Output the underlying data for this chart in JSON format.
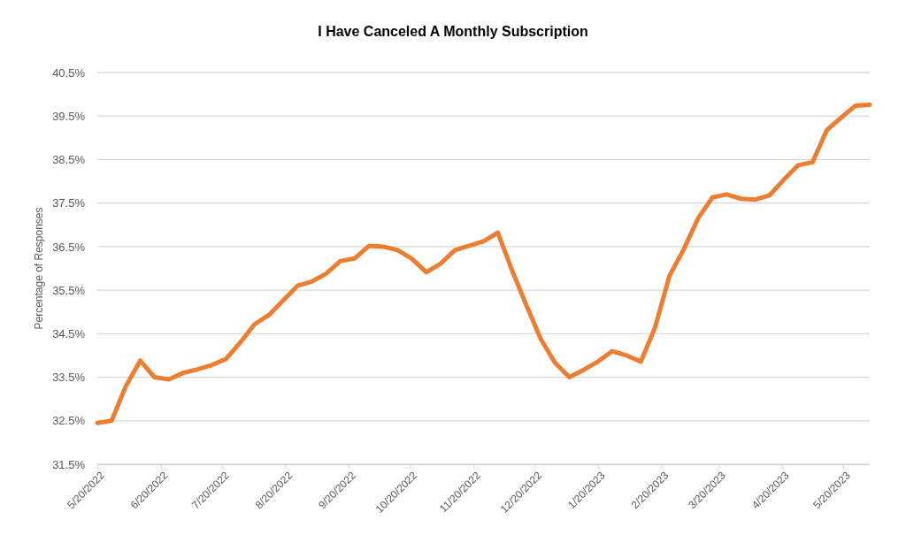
{
  "chart_data": {
    "type": "line",
    "title": "I Have Canceled A Monthly Subscription",
    "ylabel": "Percentage of Responses",
    "x": [
      "2022-05-20",
      "2022-05-27",
      "2022-06-03",
      "2022-06-10",
      "2022-06-17",
      "2022-06-24",
      "2022-07-01",
      "2022-07-08",
      "2022-07-15",
      "2022-07-22",
      "2022-07-29",
      "2022-08-05",
      "2022-08-12",
      "2022-08-19",
      "2022-08-26",
      "2022-09-02",
      "2022-09-09",
      "2022-09-16",
      "2022-09-23",
      "2022-09-30",
      "2022-10-07",
      "2022-10-14",
      "2022-10-21",
      "2022-10-28",
      "2022-11-04",
      "2022-11-11",
      "2022-11-18",
      "2022-11-25",
      "2022-12-02",
      "2022-12-09",
      "2022-12-16",
      "2022-12-23",
      "2022-12-30",
      "2023-01-06",
      "2023-01-13",
      "2023-01-20",
      "2023-01-27",
      "2023-02-03",
      "2023-02-10",
      "2023-02-17",
      "2023-02-24",
      "2023-03-03",
      "2023-03-10",
      "2023-03-17",
      "2023-03-24",
      "2023-03-31",
      "2023-04-07",
      "2023-04-14",
      "2023-04-21",
      "2023-04-28",
      "2023-05-05",
      "2023-05-12",
      "2023-05-19",
      "2023-05-26",
      "2023-06-02"
    ],
    "series": [
      {
        "color": "#ed7d31",
        "values": [
          32.45,
          32.5,
          33.3,
          33.88,
          33.5,
          33.45,
          33.6,
          33.68,
          33.78,
          33.92,
          34.3,
          34.72,
          34.93,
          35.27,
          35.6,
          35.7,
          35.88,
          36.17,
          36.23,
          36.52,
          36.5,
          36.42,
          36.22,
          35.91,
          36.11,
          36.42,
          36.52,
          36.62,
          36.82,
          35.95,
          35.15,
          34.38,
          33.83,
          33.5,
          33.67,
          33.86,
          34.1,
          34.0,
          33.86,
          34.65,
          35.83,
          36.44,
          37.15,
          37.63,
          37.7,
          37.6,
          37.58,
          37.68,
          38.04,
          38.37,
          38.44,
          39.18,
          39.46,
          39.74,
          39.76
        ]
      }
    ],
    "xlim": [
      "2022-05-20",
      "2023-06-02"
    ],
    "xticks": [
      {
        "value": "2022-05-20",
        "label": "5/20/2022"
      },
      {
        "value": "2022-06-20",
        "label": "6/20/2022"
      },
      {
        "value": "2022-07-20",
        "label": "7/20/2022"
      },
      {
        "value": "2022-08-20",
        "label": "8/20/2022"
      },
      {
        "value": "2022-09-20",
        "label": "9/20/2022"
      },
      {
        "value": "2022-10-20",
        "label": "10/20/2022"
      },
      {
        "value": "2022-11-20",
        "label": "11/20/2022"
      },
      {
        "value": "2022-12-20",
        "label": "12/20/2022"
      },
      {
        "value": "2023-01-20",
        "label": "1/20/2023"
      },
      {
        "value": "2023-02-20",
        "label": "2/20/2023"
      },
      {
        "value": "2023-03-20",
        "label": "3/20/2023"
      },
      {
        "value": "2023-04-20",
        "label": "4/20/2023"
      },
      {
        "value": "2023-05-20",
        "label": "5/20/2023"
      }
    ],
    "ylim": [
      31.5,
      40.5
    ],
    "yticks": [
      {
        "value": 31.5,
        "label": "31.5%"
      },
      {
        "value": 32.5,
        "label": "32.5%"
      },
      {
        "value": 33.5,
        "label": "33.5%"
      },
      {
        "value": 34.5,
        "label": "34.5%"
      },
      {
        "value": 35.5,
        "label": "35.5%"
      },
      {
        "value": 36.5,
        "label": "36.5%"
      },
      {
        "value": 37.5,
        "label": "37.5%"
      },
      {
        "value": 38.5,
        "label": "38.5%"
      },
      {
        "value": 39.5,
        "label": "39.5%"
      },
      {
        "value": 40.5,
        "label": "40.5%"
      }
    ],
    "grid": "y",
    "marker": "none",
    "line_style": "solid"
  }
}
